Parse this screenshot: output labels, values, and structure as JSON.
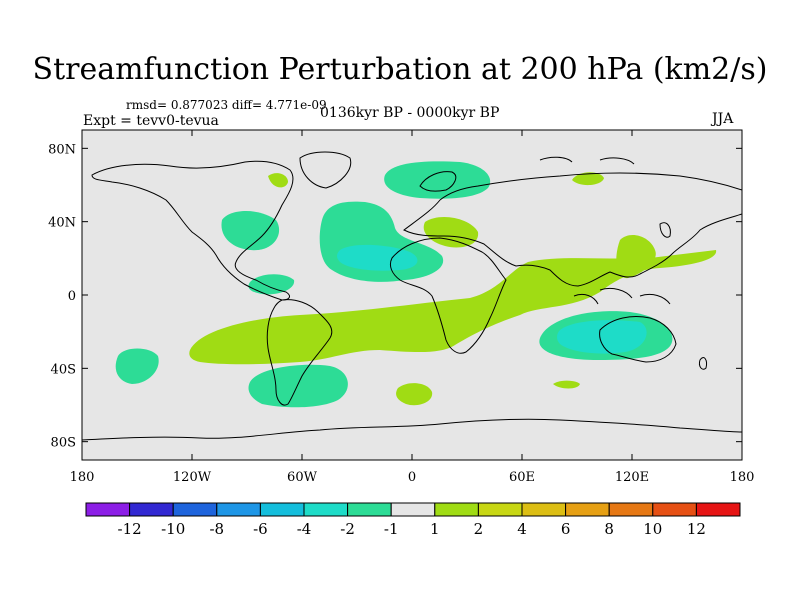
{
  "title": "Streamfunction Perturbation at 200 hPa (km2/s)",
  "stats": "rmsd= 0.877023 diff= 4.771e-09",
  "experiment": "Expt = tevv0-tevua",
  "period": "0136kyr BP - 0000kyr BP",
  "season": "JJA",
  "map": {
    "background": "#e6e6e6",
    "lon_ticks": [
      "180",
      "120W",
      "60W",
      "0",
      "60E",
      "120E",
      "180"
    ],
    "lat_ticks": [
      "80N",
      "40N",
      "0",
      "40S",
      "80S"
    ]
  },
  "colorbar": {
    "colors": [
      "#8c1ee6",
      "#3228d2",
      "#1e64dc",
      "#1e96e6",
      "#14bedc",
      "#1edcc8",
      "#2ddc96",
      "#e6e6e6",
      "#a0dc14",
      "#c8d714",
      "#dcbe14",
      "#e6a014",
      "#e67814",
      "#e65014",
      "#e61414"
    ],
    "labels": [
      "-12",
      "-10",
      "-8",
      "-6",
      "-4",
      "-2",
      "-1",
      "1",
      "2",
      "4",
      "6",
      "8",
      "10",
      "12"
    ]
  },
  "fields": [
    {
      "value": "2",
      "color": "#a0dc14"
    },
    {
      "value": "-1",
      "color": "#2ddc96"
    },
    {
      "value": "-2",
      "color": "#1edcc8"
    }
  ]
}
